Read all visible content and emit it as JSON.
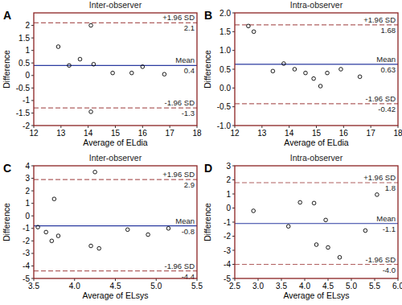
{
  "chart_data": [
    {
      "type": "scatter",
      "panel": "A",
      "title": "Inter-observer",
      "x_label": "Average of ELdia",
      "y_label": "Difference",
      "xlim": [
        12,
        18
      ],
      "ylim": [
        -2,
        2.5
      ],
      "xticks": [
        12,
        13,
        14,
        15,
        16,
        17,
        18
      ],
      "yticks": [
        -2,
        -1.5,
        -1,
        -0.5,
        0,
        0.5,
        1,
        1.5,
        2
      ],
      "x": [
        12.9,
        13.3,
        13.7,
        14.1,
        14.1,
        14.2,
        14.9,
        15.6,
        16.0,
        16.8
      ],
      "values": [
        1.15,
        0.4,
        0.65,
        2.0,
        -1.45,
        0.45,
        0.1,
        0.1,
        0.35,
        0.05
      ],
      "marker": "circle",
      "color": "#000000",
      "lines": [
        {
          "name": "+1.96 SD",
          "value": 2.1,
          "color": "#b06060",
          "line_style": "dashed"
        },
        {
          "name": "Mean",
          "value": 0.4,
          "color": "#2a3aa0",
          "line_style": "solid"
        },
        {
          "name": "-1.96 SD",
          "value": -1.3,
          "color": "#b06060",
          "line_style": "dashed"
        }
      ]
    },
    {
      "type": "scatter",
      "panel": "B",
      "title": "Intra-observer",
      "x_label": "Average of ELdia",
      "y_label": "Difference",
      "xlim": [
        12,
        18
      ],
      "ylim": [
        -1,
        2
      ],
      "xticks": [
        12,
        13,
        14,
        15,
        16,
        17,
        18
      ],
      "yticks": [
        {
          "value": -1,
          "label": "-1.0"
        },
        -0.5,
        {
          "value": 0,
          "label": "0.0"
        },
        0.5,
        {
          "value": 1,
          "label": "1.0"
        },
        1.5,
        {
          "value": 2,
          "label": "2.0"
        }
      ],
      "x": [
        12.5,
        12.7,
        13.4,
        13.8,
        14.2,
        14.6,
        14.9,
        15.15,
        15.4,
        15.9,
        16.6
      ],
      "values": [
        1.65,
        1.5,
        0.45,
        0.65,
        0.5,
        0.4,
        0.25,
        0.05,
        0.4,
        0.5,
        0.3
      ],
      "marker": "circle",
      "color": "#000000",
      "lines": [
        {
          "name": "+1.96 SD",
          "value": 1.68,
          "color": "#b06060",
          "line_style": "dashed"
        },
        {
          "name": "Mean",
          "value": 0.63,
          "color": "#2a3aa0",
          "line_style": "solid"
        },
        {
          "name": "-1.96 SD",
          "value": -0.42,
          "color": "#b06060",
          "line_style": "dashed"
        }
      ]
    },
    {
      "type": "scatter",
      "panel": "C",
      "title": "Inter-observer",
      "x_label": "Average of ELsys",
      "y_label": "Difference",
      "xlim": [
        3.5,
        5.5
      ],
      "ylim": [
        -5,
        4
      ],
      "xticks": [
        3.5,
        {
          "value": 4,
          "label": "4.0"
        },
        4.5,
        {
          "value": 5,
          "label": "5.0"
        },
        5.5
      ],
      "yticks": [
        -5,
        -4,
        -3,
        -2,
        -1,
        0,
        1,
        2,
        3,
        4
      ],
      "x": [
        3.55,
        3.65,
        3.72,
        3.75,
        3.8,
        4.2,
        4.25,
        4.3,
        4.65,
        4.9,
        5.15
      ],
      "values": [
        -0.9,
        -1.3,
        -2.0,
        1.35,
        -1.6,
        -2.4,
        3.5,
        -2.6,
        -1.1,
        -1.5,
        -1.0
      ],
      "marker": "circle",
      "color": "#000000",
      "lines": [
        {
          "name": "+1.96 SD",
          "value": 2.9,
          "color": "#b06060",
          "line_style": "dashed"
        },
        {
          "name": "Mean",
          "value": -0.8,
          "color": "#2a3aa0",
          "line_style": "solid"
        },
        {
          "name": "-1.96 SD",
          "value": -4.4,
          "color": "#b06060",
          "line_style": "dashed"
        }
      ]
    },
    {
      "type": "scatter",
      "panel": "D",
      "title": "Intra-observer",
      "x_label": "Average of ELsys",
      "y_label": "Difference",
      "xlim": [
        2.5,
        6
      ],
      "ylim": [
        -5,
        3
      ],
      "xticks": [
        2.5,
        {
          "value": 3,
          "label": "3.0"
        },
        3.5,
        {
          "value": 4,
          "label": "4.0"
        },
        4.5,
        {
          "value": 5,
          "label": "5.0"
        },
        5.5,
        {
          "value": 6,
          "label": "6.0"
        }
      ],
      "yticks": [
        -5,
        -4,
        -3,
        -2,
        -1,
        0,
        1,
        2,
        3
      ],
      "x": [
        2.9,
        3.65,
        3.9,
        4.2,
        4.25,
        4.45,
        4.5,
        4.75,
        5.3,
        5.55
      ],
      "values": [
        -0.2,
        -1.3,
        0.4,
        0.35,
        -2.6,
        -0.85,
        -2.8,
        -3.5,
        -1.6,
        0.95
      ],
      "marker": "circle",
      "color": "#000000",
      "lines": [
        {
          "name": "+1.96 SD",
          "value": 1.8,
          "color": "#b06060",
          "line_style": "dashed"
        },
        {
          "name": "Mean",
          "value": -1.1,
          "color": "#2a3aa0",
          "line_style": "solid"
        },
        {
          "name": "-1.96 SD",
          "value": -4.0,
          "label": "-4.0",
          "color": "#b06060",
          "line_style": "dashed"
        }
      ]
    }
  ]
}
